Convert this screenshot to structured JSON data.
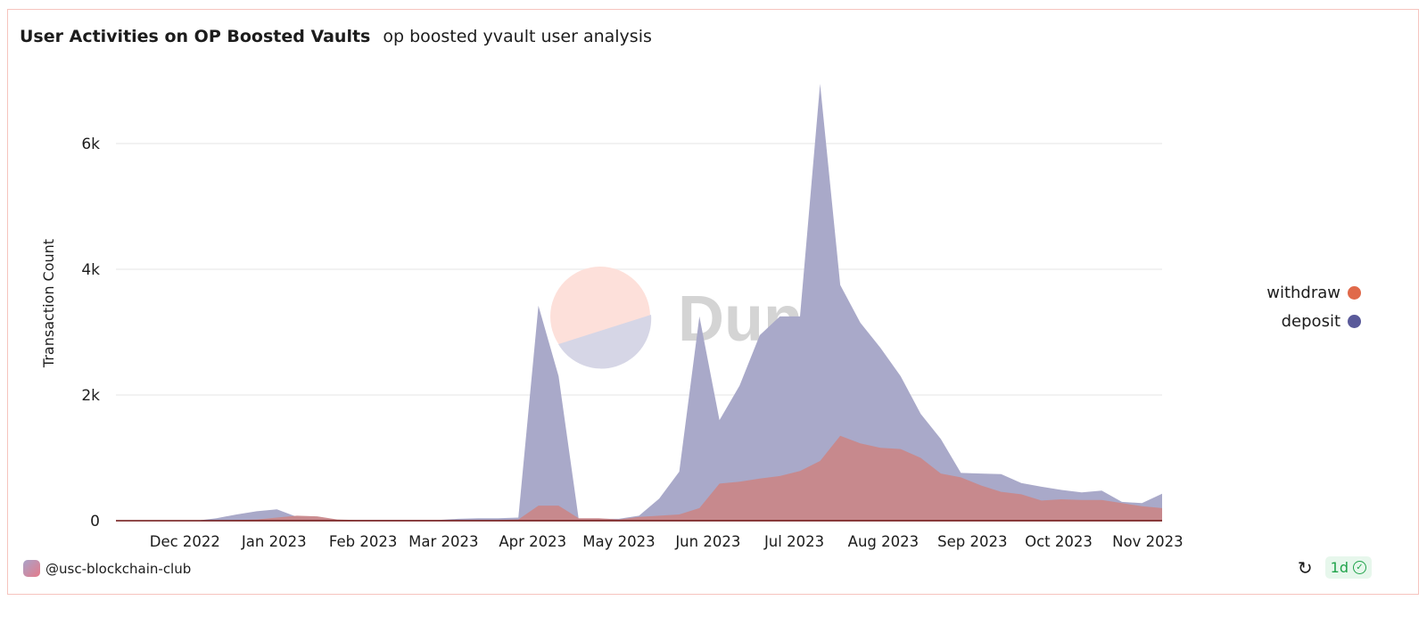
{
  "header": {
    "title": "User Activities on OP Boosted Vaults",
    "subtitle": "op boosted yvault user analysis"
  },
  "footer": {
    "author": "@usc-blockchain-club",
    "freshness": "1d"
  },
  "watermark": "Dune",
  "colors": {
    "withdraw": "#e0694a",
    "deposit": "#5a5a9a",
    "withdraw_fill": "#c8878a",
    "deposit_fill": "#a9a9c9"
  },
  "chart_data": {
    "type": "area",
    "title": "User Activities on OP Boosted Vaults",
    "xlabel": "",
    "ylabel": "Transaction Count",
    "ylim": [
      0,
      7000
    ],
    "yticks": [
      0,
      2000,
      4000,
      6000
    ],
    "ytick_labels": [
      "0",
      "2k",
      "4k",
      "6k"
    ],
    "xticks": [
      "2022-12-01",
      "2023-01-01",
      "2023-02-01",
      "2023-03-01",
      "2023-04-01",
      "2023-05-01",
      "2023-06-01",
      "2023-07-01",
      "2023-08-01",
      "2023-09-01",
      "2023-10-01",
      "2023-11-01"
    ],
    "xtick_labels": [
      "Dec 2022",
      "Jan 2023",
      "Feb 2023",
      "Mar 2023",
      "Apr 2023",
      "May 2023",
      "Jun 2023",
      "Jul 2023",
      "Aug 2023",
      "Sep 2023",
      "Oct 2023",
      "Nov 2023"
    ],
    "grid": true,
    "legend_position": "right",
    "x": [
      "2022-11-07",
      "2022-11-14",
      "2022-11-21",
      "2022-11-28",
      "2022-12-05",
      "2022-12-12",
      "2022-12-19",
      "2022-12-26",
      "2023-01-02",
      "2023-01-09",
      "2023-01-16",
      "2023-01-23",
      "2023-01-30",
      "2023-02-06",
      "2023-02-13",
      "2023-02-20",
      "2023-02-27",
      "2023-03-06",
      "2023-03-13",
      "2023-03-20",
      "2023-03-27",
      "2023-04-03",
      "2023-04-10",
      "2023-04-17",
      "2023-04-24",
      "2023-05-01",
      "2023-05-08",
      "2023-05-15",
      "2023-05-22",
      "2023-05-29",
      "2023-06-05",
      "2023-06-12",
      "2023-06-19",
      "2023-06-26",
      "2023-07-03",
      "2023-07-10",
      "2023-07-17",
      "2023-07-24",
      "2023-07-31",
      "2023-08-07",
      "2023-08-14",
      "2023-08-21",
      "2023-08-28",
      "2023-09-04",
      "2023-09-11",
      "2023-09-18",
      "2023-09-25",
      "2023-10-02",
      "2023-10-09",
      "2023-10-16",
      "2023-10-23",
      "2023-10-30",
      "2023-11-06"
    ],
    "series": [
      {
        "name": "deposit",
        "values": [
          0,
          0,
          0,
          0,
          0,
          40,
          100,
          150,
          180,
          60,
          30,
          10,
          10,
          10,
          10,
          10,
          10,
          30,
          40,
          40,
          50,
          3420,
          2300,
          30,
          30,
          30,
          80,
          350,
          780,
          3250,
          1600,
          2150,
          2950,
          3250,
          3250,
          6950,
          3750,
          3150,
          2750,
          2300,
          1700,
          1300,
          760,
          750,
          740,
          600,
          540,
          490,
          450,
          480,
          300,
          280,
          430
        ]
      },
      {
        "name": "withdraw",
        "values": [
          0,
          0,
          0,
          0,
          0,
          5,
          10,
          20,
          50,
          80,
          70,
          20,
          10,
          10,
          10,
          10,
          10,
          10,
          10,
          10,
          20,
          240,
          240,
          40,
          40,
          20,
          60,
          80,
          100,
          200,
          590,
          620,
          670,
          710,
          790,
          950,
          1350,
          1230,
          1160,
          1140,
          1000,
          750,
          690,
          560,
          460,
          420,
          320,
          340,
          330,
          330,
          280,
          230,
          200
        ]
      }
    ]
  }
}
